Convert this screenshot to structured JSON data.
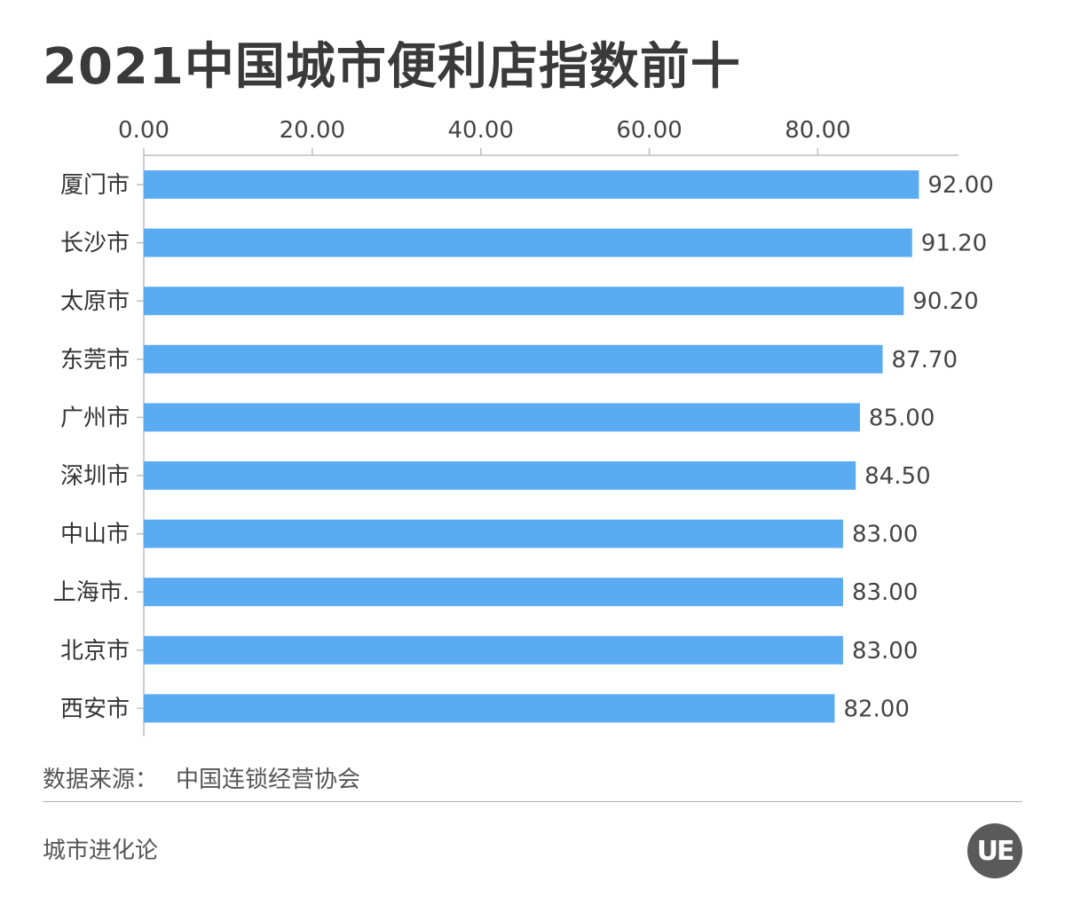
{
  "title": "2021中国城市便利店指数前十",
  "chart_data": {
    "type": "bar",
    "orientation": "horizontal",
    "categories": [
      "厦门市",
      "长沙市",
      "太原市",
      "东莞市",
      "广州市",
      "深圳市",
      "中山市",
      "上海市.",
      "北京市",
      "西安市"
    ],
    "values": [
      92.0,
      91.2,
      90.2,
      87.7,
      85.0,
      84.5,
      83.0,
      83.0,
      83.0,
      82.0
    ],
    "value_labels": [
      "92.00",
      "91.20",
      "90.20",
      "87.70",
      "85.00",
      "84.50",
      "83.00",
      "83.00",
      "83.00",
      "82.00"
    ],
    "axis_ticks": [
      0,
      20,
      40,
      60,
      80
    ],
    "axis_tick_labels": [
      "0.00",
      "20.00",
      "40.00",
      "60.00",
      "80.00"
    ],
    "xlim": [
      0,
      96.7
    ],
    "axis_position": "top",
    "bar_color": "#5aabf2"
  },
  "source_label": "数据来源：",
  "source_value": "中国连锁经营协会",
  "footer_text": "城市进化论",
  "logo_text": "UE"
}
